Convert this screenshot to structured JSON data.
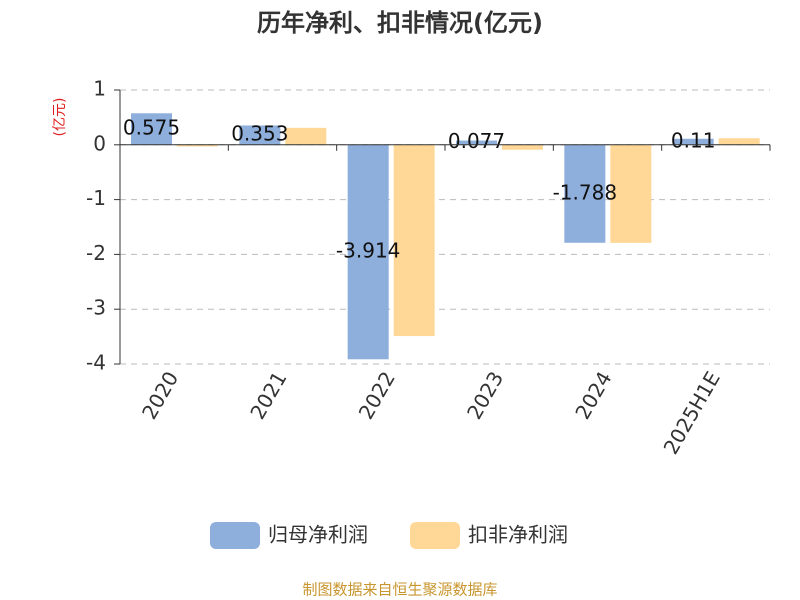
{
  "chart_data": {
    "type": "bar",
    "title": "历年净利、扣非情况(亿元)",
    "y_label": "(亿元)",
    "categories": [
      "2020",
      "2021",
      "2022",
      "2023",
      "2024",
      "2025H1E"
    ],
    "series": [
      {
        "name": "归母净利润",
        "color": "#8eaedc",
        "values": [
          0.575,
          0.353,
          -3.914,
          0.077,
          -1.788,
          0.11
        ]
      },
      {
        "name": "扣非净利润",
        "color": "#ffd898",
        "values": [
          -0.03,
          0.31,
          -3.49,
          -0.09,
          -1.79,
          0.12
        ]
      }
    ],
    "ylim": [
      -4,
      1
    ],
    "yticks": [
      1,
      0,
      -1,
      -2,
      -3,
      -4
    ],
    "grid": true,
    "footer": "制图数据来自恒生聚源数据库"
  }
}
